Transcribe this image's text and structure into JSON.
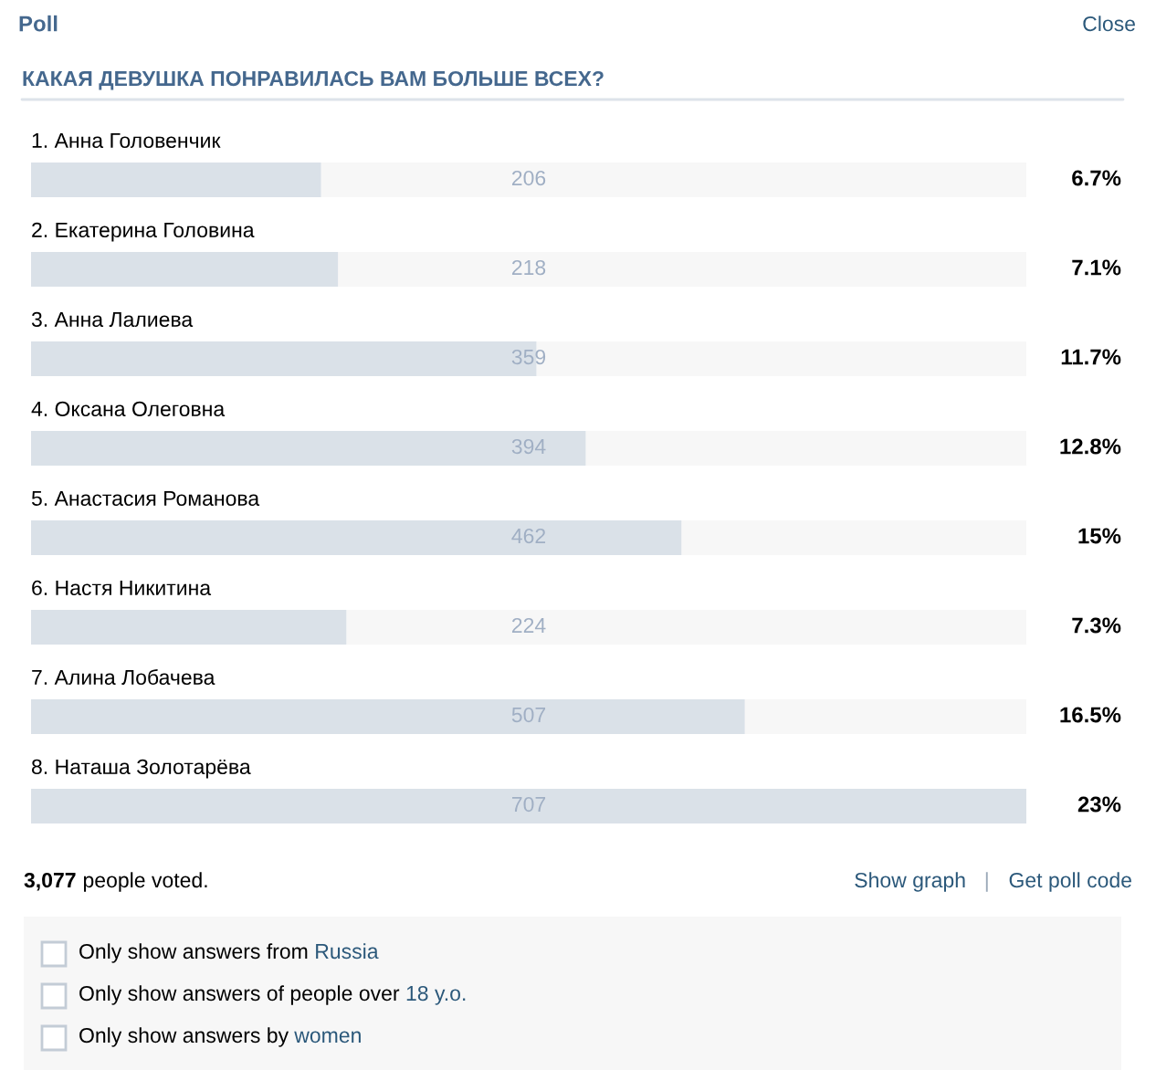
{
  "chart_data": {
    "type": "bar",
    "orientation": "horizontal",
    "title": "КАКАЯ ДЕВУШКА ПОНРАВИЛАСЬ ВАМ БОЛЬШЕ ВСЕХ?",
    "categories": [
      "1. Анна Головенчик",
      "2. Екатерина Головина",
      "3. Анна Лалиева",
      "4. Оксана Олеговна",
      "5. Анастасия Романова",
      "6. Настя Никитина",
      "7. Алина Лобачева",
      "8. Наташа Золотарёва"
    ],
    "values": [
      206,
      218,
      359,
      394,
      462,
      224,
      507,
      707
    ],
    "data_labels": true,
    "color": "#dae1e8",
    "tick_labels": "y",
    "annotations": [
      "Poll",
      "Close",
      "3,077",
      "people voted.",
      "Show graph",
      "|",
      "Get poll code",
      "Only show answers from",
      "Russia",
      "Only show answers of people over",
      "18 y.o.",
      "Only show answers by",
      "women",
      "6.7%",
      "7.1%",
      "11.7%",
      "12.8%",
      "15%",
      "7.3%",
      "16.5%",
      "23%"
    ]
  }
}
